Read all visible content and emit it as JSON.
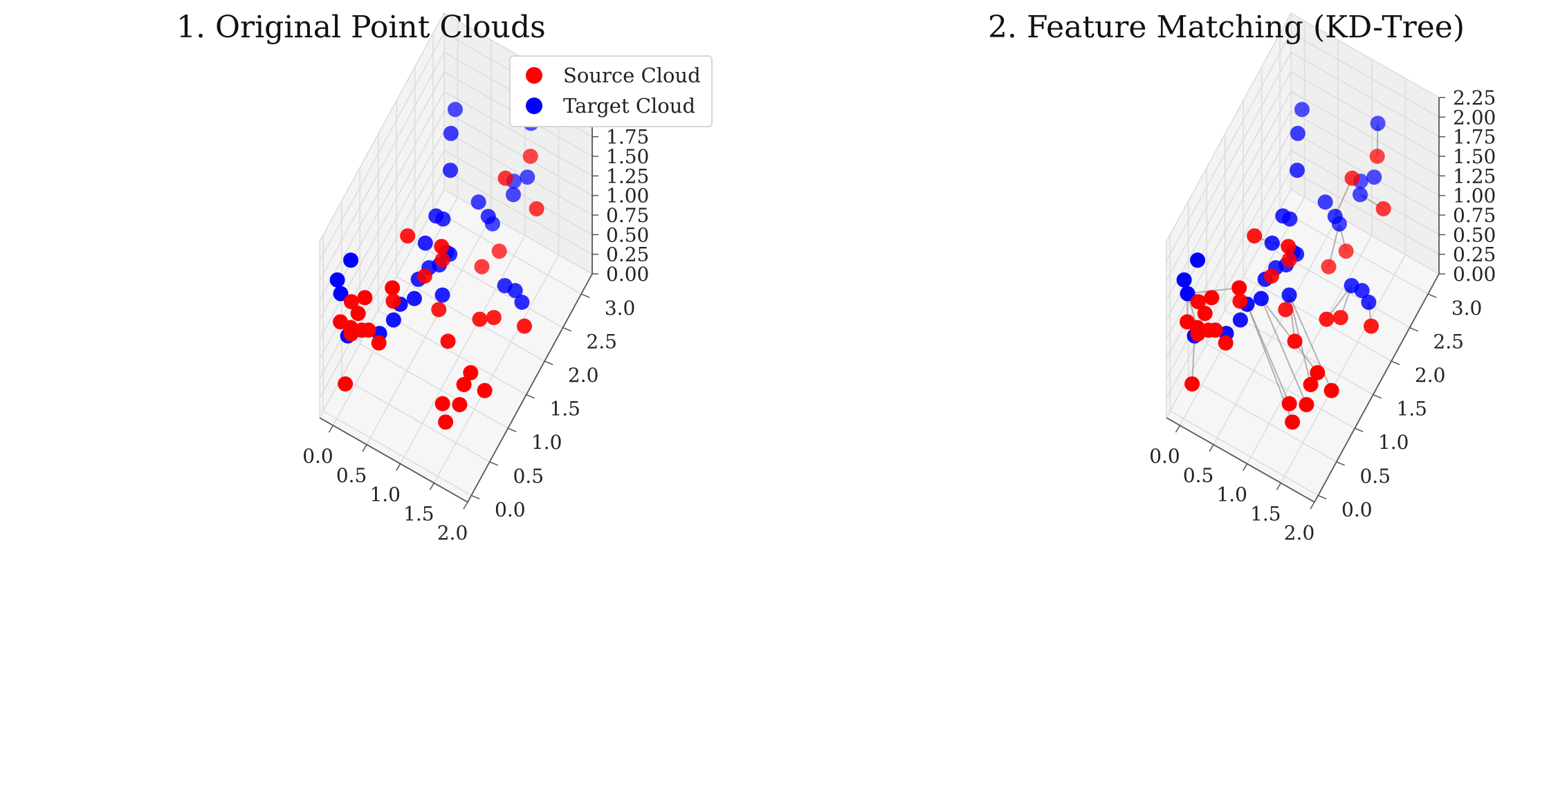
{
  "figure": {
    "titles": [
      "1. Original Point Clouds",
      "2. Feature Matching (KD-Tree)"
    ]
  },
  "legend": {
    "source_label": "Source Cloud",
    "target_label": "Target Cloud",
    "source_color": "#ff0000",
    "target_color": "#0000ff"
  },
  "chart_data": [
    {
      "type": "scatter",
      "projection": "3d",
      "title": "1. Original Point Clouds",
      "xlabel": "",
      "ylabel": "",
      "zlabel": "",
      "xlim": [
        -0.2,
        2.0
      ],
      "ylim": [
        -0.1,
        3.3
      ],
      "zlim": [
        0,
        2.25
      ],
      "xticks": [
        "0.0",
        "0.5",
        "1.0",
        "1.5",
        "2.0"
      ],
      "yticks": [
        "0.0",
        "0.5",
        "1.0",
        "1.5",
        "2.0",
        "2.5",
        "3.0"
      ],
      "zticks": [
        "0.00",
        "0.25",
        "0.50",
        "0.75",
        "1.00",
        "1.25",
        "1.50",
        "1.75",
        "2.00",
        "2.25"
      ],
      "grid": true,
      "legend_position": "top-right",
      "series": [
        {
          "name": "Source Cloud",
          "color": "#ff0000",
          "points": [
            [
              0.1,
              0.05,
              0.45
            ],
            [
              0.0,
              0.1,
              1.15
            ],
            [
              0.05,
              0.3,
              0.85
            ],
            [
              0.0,
              0.4,
              1.15
            ],
            [
              0.15,
              0.1,
              1.15
            ],
            [
              0.1,
              0.4,
              1.05
            ],
            [
              0.2,
              0.4,
              1.3
            ],
            [
              0.1,
              0.5,
              0.75
            ],
            [
              0.2,
              0.5,
              0.8
            ],
            [
              0.3,
              0.6,
              0.6
            ],
            [
              0.35,
              0.9,
              0.9
            ],
            [
              0.5,
              0.6,
              1.4
            ],
            [
              0.4,
              1.2,
              1.5
            ],
            [
              0.6,
              1.3,
              1.0
            ],
            [
              0.85,
              1.3,
              1.5
            ],
            [
              0.7,
              1.6,
              1.0
            ],
            [
              0.7,
              1.5,
              0.45
            ],
            [
              1.0,
              1.2,
              0.45
            ],
            [
              1.3,
              0.5,
              0.4
            ],
            [
              1.4,
              0.4,
              0.3
            ],
            [
              1.5,
              0.6,
              0.4
            ],
            [
              1.5,
              0.9,
              0.55
            ],
            [
              1.4,
              0.9,
              0.35
            ],
            [
              1.6,
              1.1,
              0.2
            ],
            [
              1.2,
              1.7,
              0.4
            ],
            [
              1.3,
              1.9,
              0.3
            ],
            [
              1.7,
              2.0,
              0.3
            ],
            [
              1.2,
              2.4,
              1.6
            ],
            [
              1.3,
              2.9,
              1.5
            ],
            [
              1.5,
              2.7,
              1.1
            ],
            [
              1.0,
              2.6,
              0.4
            ],
            [
              0.85,
              2.4,
              0.3
            ]
          ]
        },
        {
          "name": "Target Cloud",
          "color": "#0000ff",
          "points": [
            [
              -0.1,
              0.2,
              1.55
            ],
            [
              -0.05,
              0.2,
              1.4
            ],
            [
              0.0,
              0.3,
              0.8
            ],
            [
              0.1,
              0.2,
              1.9
            ],
            [
              0.2,
              0.8,
              0.5
            ],
            [
              0.3,
              1.0,
              0.55
            ],
            [
              0.4,
              1.0,
              0.8
            ],
            [
              0.5,
              1.2,
              0.75
            ],
            [
              0.45,
              1.4,
              0.8
            ],
            [
              0.5,
              1.5,
              1.2
            ],
            [
              0.55,
              1.7,
              1.4
            ],
            [
              0.6,
              1.8,
              1.3
            ],
            [
              0.65,
              1.8,
              0.9
            ],
            [
              0.6,
              1.7,
              0.8
            ],
            [
              0.7,
              1.8,
              0.9
            ],
            [
              0.5,
              1.6,
              0.8
            ],
            [
              0.6,
              2.0,
              1.75
            ],
            [
              0.5,
              2.2,
              2.0
            ],
            [
              0.4,
              2.5,
              2.0
            ],
            [
              0.8,
              2.4,
              1.1
            ],
            [
              0.9,
              2.6,
              0.7
            ],
            [
              1.1,
              2.8,
              1.0
            ],
            [
              1.0,
              2.3,
              1.1
            ],
            [
              1.3,
              2.2,
              0.45
            ],
            [
              1.4,
              2.3,
              0.35
            ],
            [
              1.5,
              2.3,
              0.25
            ],
            [
              1.2,
              3.0,
              1.1
            ],
            [
              1.0,
              3.0,
              0.95
            ],
            [
              1.2,
              3.1,
              1.7
            ],
            [
              0.7,
              1.6,
              0.55
            ]
          ]
        }
      ]
    },
    {
      "type": "scatter",
      "projection": "3d",
      "title": "2. Feature Matching (KD-Tree)",
      "xlabel": "",
      "ylabel": "",
      "zlabel": "",
      "xlim": [
        -0.2,
        2.0
      ],
      "ylim": [
        -0.1,
        3.3
      ],
      "zlim": [
        0,
        2.25
      ],
      "xticks": [
        "0.0",
        "0.5",
        "1.0",
        "1.5",
        "2.0"
      ],
      "yticks": [
        "0.0",
        "0.5",
        "1.0",
        "1.5",
        "2.0",
        "2.5",
        "3.0"
      ],
      "zticks": [
        "0.00",
        "0.25",
        "0.50",
        "0.75",
        "1.00",
        "1.25",
        "1.50",
        "1.75",
        "2.00",
        "2.25"
      ],
      "grid": true,
      "series_reference": "same Source Cloud and Target Cloud points as chart 1",
      "matches": "each source point linked by a gray arrow to its nearest target point"
    }
  ]
}
